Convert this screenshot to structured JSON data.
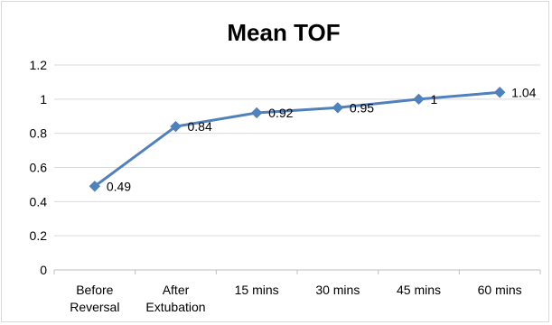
{
  "chart_data": {
    "type": "line",
    "title": "Mean TOF",
    "xlabel": "",
    "ylabel": "",
    "categories": [
      [
        "Before",
        "Reversal"
      ],
      [
        "After",
        "Extubation"
      ],
      [
        "15 mins"
      ],
      [
        "30 mins"
      ],
      [
        "45 mins"
      ],
      [
        "60 mins"
      ]
    ],
    "series": [
      {
        "values": [
          0.49,
          0.84,
          0.92,
          0.95,
          1,
          1.04
        ],
        "data_labels": [
          "0.49",
          "0.84",
          "0.92",
          "0.95",
          "1",
          "1.04"
        ],
        "color": "#4f81bd",
        "marker": "diamond"
      }
    ],
    "ylim": [
      0,
      1.2
    ],
    "yticks": [
      "0",
      "0.2",
      "0.4",
      "0.6",
      "0.8",
      "1",
      "1.2"
    ],
    "grid": true,
    "legend": "none"
  }
}
